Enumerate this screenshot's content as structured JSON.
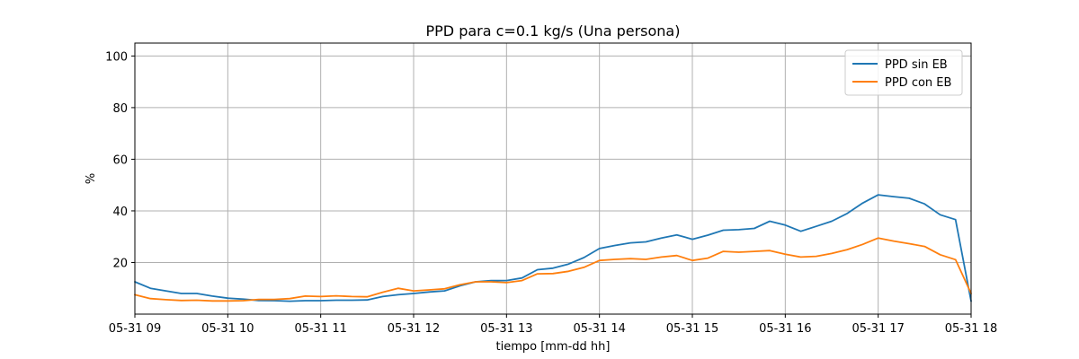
{
  "chart_data": {
    "type": "line",
    "title": "PPD para c=0.1 kg/s (Una persona)",
    "xlabel": "tiempo [mm-dd hh]",
    "ylabel": "%",
    "x_range_hours": [
      9,
      18
    ],
    "ylim": [
      0,
      105
    ],
    "yticks": [
      20,
      40,
      60,
      80,
      100
    ],
    "xtick_labels": [
      "05-31 09",
      "05-31 10",
      "05-31 11",
      "05-31 12",
      "05-31 13",
      "05-31 14",
      "05-31 15",
      "05-31 16",
      "05-31 17",
      "05-31 18"
    ],
    "grid": true,
    "legend_position": "upper right",
    "x_hours": [
      9.0,
      9.167,
      9.333,
      9.5,
      9.667,
      9.833,
      10.0,
      10.167,
      10.333,
      10.5,
      10.667,
      10.833,
      11.0,
      11.167,
      11.333,
      11.5,
      11.667,
      11.833,
      12.0,
      12.167,
      12.333,
      12.5,
      12.667,
      12.833,
      13.0,
      13.167,
      13.333,
      13.5,
      13.667,
      13.833,
      14.0,
      14.167,
      14.333,
      14.5,
      14.667,
      14.833,
      15.0,
      15.167,
      15.333,
      15.5,
      15.667,
      15.833,
      16.0,
      16.167,
      16.333,
      16.5,
      16.667,
      16.833,
      17.0,
      17.167,
      17.333,
      17.5,
      17.667,
      17.833,
      18.0
    ],
    "series": [
      {
        "name": "PPD sin EB",
        "color": "#1f77b4",
        "values": [
          12.5,
          10.0,
          9.0,
          8.0,
          8.0,
          7.0,
          6.2,
          5.8,
          5.3,
          5.2,
          5.0,
          5.2,
          5.2,
          5.4,
          5.4,
          5.5,
          6.8,
          7.5,
          8.0,
          8.6,
          9.0,
          11.0,
          12.5,
          13.0,
          13.0,
          14.0,
          17.2,
          17.8,
          19.4,
          21.9,
          25.4,
          26.6,
          27.6,
          28.0,
          29.5,
          30.7,
          29.0,
          30.6,
          32.5,
          32.7,
          33.2,
          36.0,
          34.5,
          32.1,
          34.0,
          36.0,
          39.0,
          43.0,
          46.2,
          45.5,
          44.9,
          42.7,
          38.5,
          36.6,
          5.0
        ]
      },
      {
        "name": "PPD con EB",
        "color": "#ff7f0e",
        "values": [
          7.5,
          6.0,
          5.6,
          5.3,
          5.4,
          5.1,
          5.1,
          5.2,
          5.7,
          5.7,
          6.0,
          7.0,
          6.8,
          7.1,
          6.8,
          6.7,
          8.5,
          10.0,
          9.0,
          9.4,
          9.8,
          11.4,
          12.5,
          12.5,
          12.2,
          13.0,
          15.6,
          15.7,
          16.6,
          18.1,
          20.8,
          21.2,
          21.5,
          21.2,
          22.1,
          22.7,
          20.8,
          21.7,
          24.3,
          24.0,
          24.3,
          24.6,
          23.2,
          22.1,
          22.4,
          23.5,
          25.0,
          27.0,
          29.5,
          28.3,
          27.3,
          26.2,
          23.0,
          21.1,
          8.0
        ]
      }
    ]
  }
}
